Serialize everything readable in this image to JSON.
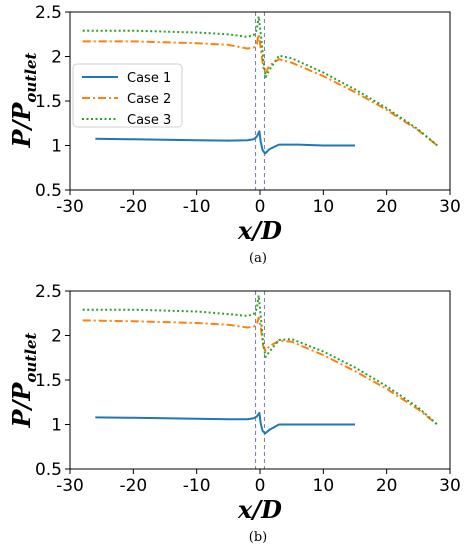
{
  "figure": {
    "caption_a": "(a)",
    "caption_b": "(b)"
  },
  "axes_text": {
    "xlabel": "x/D",
    "ylabel_main": "P/P",
    "ylabel_sub": "outlet"
  },
  "colors": {
    "case1": "#1f77b4",
    "case2": "#ff7f0e",
    "case3": "#2ca02c",
    "vline": "#7a7aa8"
  },
  "chart_data": [
    {
      "type": "line",
      "panel": "a",
      "title": "",
      "xlabel": "x/D",
      "ylabel": "P/P_outlet",
      "xlim": [
        -30,
        30
      ],
      "ylim": [
        0.5,
        2.5
      ],
      "xticks": [
        -30,
        -20,
        -10,
        0,
        10,
        20,
        30
      ],
      "yticks": [
        0.5,
        1,
        1.5,
        2,
        2.5
      ],
      "ytick_labels": [
        "0.5",
        "1",
        "1.5",
        "2",
        "2.5"
      ],
      "vlines": [
        -0.7,
        0.7
      ],
      "grid": false,
      "legend": "upper-left",
      "series": [
        {
          "name": "Case 1",
          "style": "solid",
          "x": [
            -26,
            -20,
            -15,
            -10,
            -5,
            -2,
            -1,
            -0.5,
            -0.1,
            0.1,
            0.4,
            0.8,
            1.5,
            3,
            6,
            10,
            15
          ],
          "y": [
            1.075,
            1.07,
            1.065,
            1.06,
            1.055,
            1.06,
            1.07,
            1.1,
            1.16,
            1.05,
            0.95,
            0.91,
            0.96,
            1.01,
            1.01,
            1.0,
            1.0
          ]
        },
        {
          "name": "Case 2",
          "style": "dashdot",
          "x": [
            -28,
            -20,
            -15,
            -10,
            -5,
            -2,
            -1,
            -0.5,
            -0.2,
            0.2,
            0.5,
            0.9,
            1.5,
            3,
            5,
            10,
            15,
            20,
            25,
            28
          ],
          "y": [
            2.17,
            2.17,
            2.16,
            2.15,
            2.13,
            2.09,
            2.1,
            2.14,
            2.25,
            2.05,
            1.88,
            1.82,
            1.9,
            1.97,
            1.93,
            1.78,
            1.6,
            1.4,
            1.17,
            1.0
          ]
        },
        {
          "name": "Case 3",
          "style": "dotted",
          "x": [
            -28,
            -20,
            -15,
            -10,
            -5,
            -2,
            -1,
            -0.5,
            -0.2,
            0.2,
            0.5,
            0.9,
            1.5,
            3,
            5,
            10,
            15,
            20,
            25,
            28
          ],
          "y": [
            2.29,
            2.29,
            2.28,
            2.27,
            2.25,
            2.22,
            2.24,
            2.3,
            2.45,
            2.2,
            1.97,
            1.77,
            1.85,
            2.01,
            1.98,
            1.82,
            1.63,
            1.42,
            1.18,
            1.0
          ]
        }
      ]
    },
    {
      "type": "line",
      "panel": "b",
      "title": "",
      "xlabel": "x/D",
      "ylabel": "P/P_outlet",
      "xlim": [
        -30,
        30
      ],
      "ylim": [
        0.5,
        2.5
      ],
      "xticks": [
        -30,
        -20,
        -10,
        0,
        10,
        20,
        30
      ],
      "yticks": [
        0.5,
        1,
        1.5,
        2,
        2.5
      ],
      "ytick_labels": [
        "0.5",
        "1",
        "1.5",
        "2",
        "2.5"
      ],
      "vlines": [
        -0.7,
        0.7
      ],
      "grid": false,
      "legend": "none",
      "series": [
        {
          "name": "Case 1",
          "style": "solid",
          "x": [
            -26,
            -20,
            -15,
            -10,
            -5,
            -2,
            -1,
            -0.5,
            -0.1,
            0.1,
            0.4,
            0.8,
            1.5,
            3,
            6,
            10,
            15
          ],
          "y": [
            1.08,
            1.075,
            1.07,
            1.065,
            1.06,
            1.06,
            1.07,
            1.09,
            1.13,
            1.02,
            0.93,
            0.9,
            0.94,
            1.0,
            1.0,
            1.0,
            1.0
          ]
        },
        {
          "name": "Case 2",
          "style": "dashdot",
          "x": [
            -28,
            -20,
            -15,
            -10,
            -5,
            -2,
            -1,
            -0.5,
            -0.2,
            0.2,
            0.5,
            0.9,
            1.5,
            3,
            5,
            10,
            15,
            20,
            25,
            28
          ],
          "y": [
            2.17,
            2.16,
            2.15,
            2.14,
            2.12,
            2.09,
            2.1,
            2.13,
            2.2,
            2.05,
            1.88,
            1.83,
            1.88,
            1.94,
            1.93,
            1.78,
            1.6,
            1.4,
            1.17,
            1.0
          ]
        },
        {
          "name": "Case 3",
          "style": "dotted",
          "x": [
            -28,
            -20,
            -15,
            -10,
            -5,
            -2,
            -1,
            -0.5,
            -0.2,
            0.2,
            0.5,
            0.9,
            1.5,
            3,
            5,
            10,
            15,
            20,
            25,
            28
          ],
          "y": [
            2.29,
            2.29,
            2.28,
            2.27,
            2.24,
            2.22,
            2.24,
            2.3,
            2.45,
            2.15,
            1.9,
            1.76,
            1.82,
            1.95,
            1.96,
            1.82,
            1.64,
            1.43,
            1.19,
            1.0
          ]
        }
      ]
    }
  ]
}
